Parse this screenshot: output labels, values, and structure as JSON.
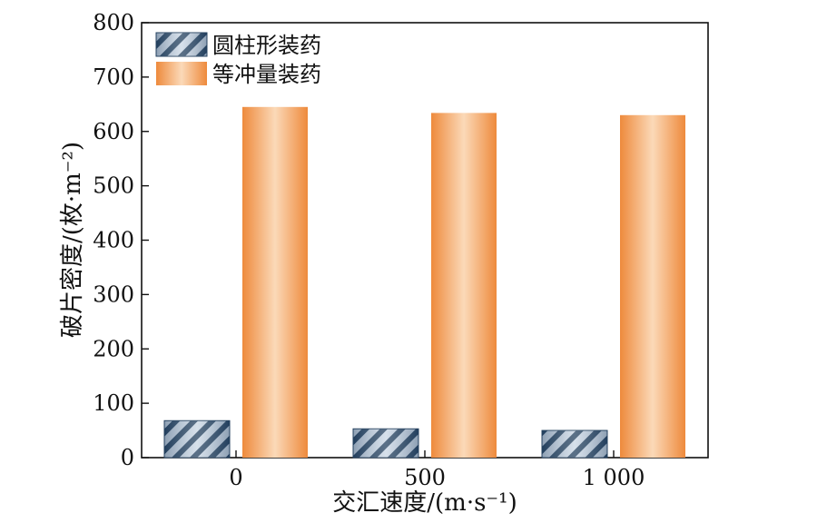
{
  "chart_data": {
    "type": "bar",
    "categories": [
      "0",
      "500",
      "1 000"
    ],
    "series": [
      {
        "name": "圆柱形装药",
        "values": [
          68,
          53,
          50
        ],
        "style": "hatched",
        "color": "#2f4f6f"
      },
      {
        "name": "等冲量装药",
        "values": [
          645,
          634,
          630
        ],
        "style": "gradient",
        "color": "#f0a060"
      }
    ],
    "xlabel": "交汇速度/(m·s⁻¹)",
    "ylabel": "破片密度/(枚·m⁻²)",
    "ylim": [
      0,
      800
    ],
    "yticks": [
      0,
      100,
      200,
      300,
      400,
      500,
      600,
      700,
      800
    ],
    "legend_position": "top-left",
    "grid": false
  }
}
